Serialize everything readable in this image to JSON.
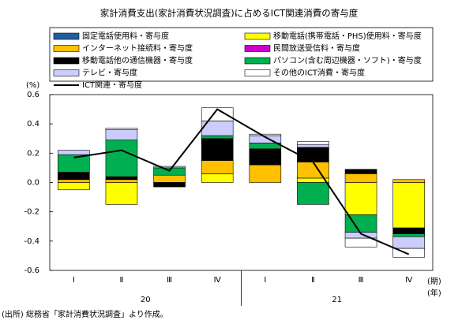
{
  "chart_data": {
    "type": "stacked-bar-line",
    "title": "家計消費支出(家計消費状況調査)に占めるICT関連消費の寄与度",
    "y_label": "(%)",
    "categories": [
      "Ⅰ",
      "Ⅱ",
      "Ⅲ",
      "Ⅳ",
      "Ⅰ",
      "Ⅱ",
      "Ⅲ",
      "Ⅳ"
    ],
    "year_labels": [
      "20",
      "21"
    ],
    "period_unit": "(期)",
    "year_unit": "(年)",
    "source": "(出所) 総務省「家計消費状況調査」より作成。",
    "ylim": [
      -0.6,
      0.6
    ],
    "yticks": [
      -0.6,
      -0.4,
      -0.2,
      {
        "value": 0,
        "label": "0.0"
      },
      0.2,
      0.4,
      0.6
    ],
    "series": [
      {
        "name": "固定電話使用料・寄与度",
        "color": "#1f5fa0",
        "values": [
          0,
          0,
          0,
          0,
          0,
          0,
          0,
          0
        ]
      },
      {
        "name": "移動電話(携帯電話・PHS)使用料・寄与度",
        "color": "#ffff00",
        "values": [
          -0.05,
          -0.15,
          0,
          0.06,
          0,
          0.03,
          -0.22,
          -0.31
        ]
      },
      {
        "name": "インターネット接続料・寄与度",
        "color": "#ffc000",
        "values": [
          0.02,
          0.02,
          0.05,
          0.09,
          0.12,
          0.11,
          0.06,
          0.02
        ]
      },
      {
        "name": "民間放送受信料・寄与度",
        "color": "#cc00cc",
        "values": [
          0,
          0,
          0,
          0,
          0,
          0,
          0,
          0
        ]
      },
      {
        "name": "移動電話他の通信機器・寄与度",
        "color": "#000000",
        "values": [
          0.05,
          0.02,
          -0.03,
          0.15,
          0.11,
          0.1,
          0.03,
          -0.04
        ]
      },
      {
        "name": "パソコン(含む周辺機器・ソフト)・寄与度",
        "color": "#00b050",
        "values": [
          0.12,
          0.25,
          0.05,
          0.02,
          0.04,
          -0.15,
          -0.12,
          -0.02
        ]
      },
      {
        "name": "テレビ・寄与度",
        "color": "#ccccff",
        "values": [
          0.03,
          0.07,
          0.01,
          0.1,
          0.05,
          0.02,
          -0.04,
          -0.08
        ]
      },
      {
        "name": "その他のICT消費・寄与度",
        "color": "#ffffff",
        "values": [
          0,
          0.01,
          0,
          0.09,
          0.01,
          0.02,
          -0.06,
          -0.06
        ]
      }
    ],
    "line": {
      "name": "ICT関連・寄与度",
      "color": "#000000",
      "values": [
        0.17,
        0.22,
        0.08,
        0.5,
        0.31,
        0.14,
        -0.35,
        -0.49
      ]
    }
  }
}
